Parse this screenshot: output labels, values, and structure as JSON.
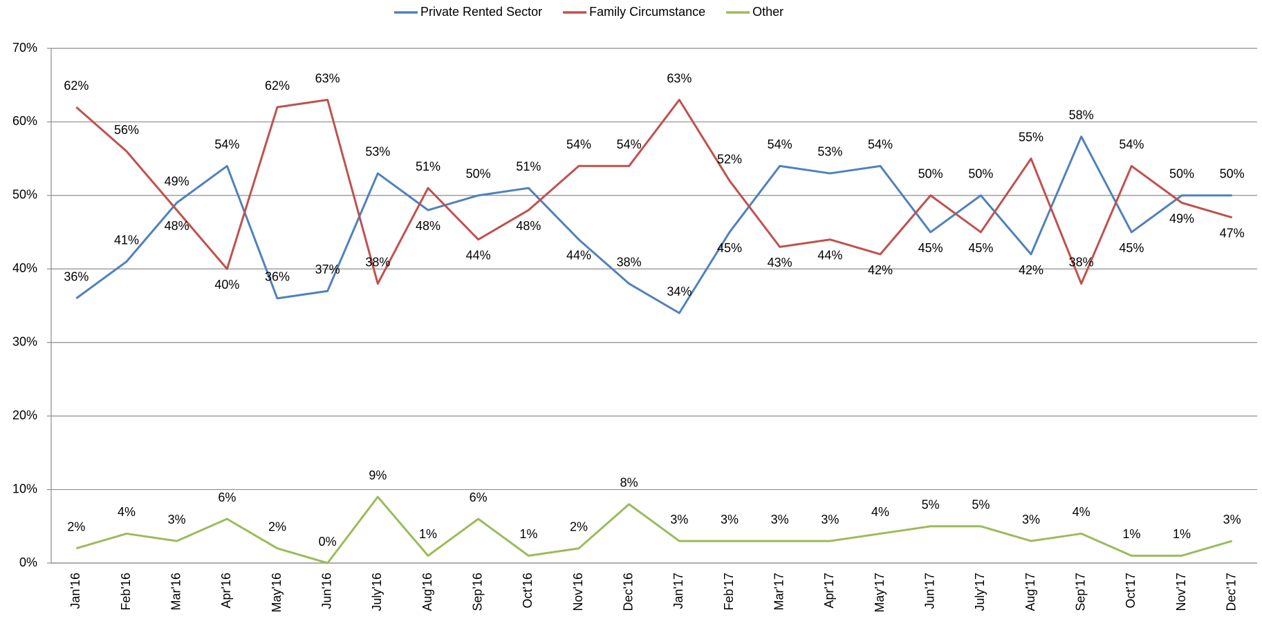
{
  "chart_data": {
    "type": "line",
    "categories": [
      "Jan'16",
      "Feb'16",
      "Mar'16",
      "Apr'16",
      "May'16",
      "Jun'16",
      "July'16",
      "Aug'16",
      "Sep'16",
      "Oct'16",
      "Nov'16",
      "Dec'16",
      "Jan'17",
      "Feb'17",
      "Mar'17",
      "Apr'17",
      "May'17",
      "Jun'17",
      "July'17",
      "Aug'17",
      "Sep'17",
      "Oct'17",
      "Nov'17",
      "Dec'17"
    ],
    "series": [
      {
        "name": "Private Rented Sector",
        "color": "#4f81bd",
        "values": [
          36,
          41,
          49,
          54,
          36,
          37,
          53,
          48,
          50,
          51,
          44,
          38,
          34,
          45,
          54,
          53,
          54,
          45,
          50,
          42,
          58,
          45,
          50,
          50
        ],
        "value_labels": [
          "36%",
          "41%",
          "49%",
          "54%",
          "36%",
          "37%",
          "53%",
          "48%",
          "50%",
          "51%",
          "44%",
          "38%",
          "34%",
          "45%",
          "54%",
          "53%",
          "54%",
          "45%",
          "50%",
          "42%",
          "58%",
          "45%",
          "50%",
          "50%"
        ]
      },
      {
        "name": "Family Circumstance",
        "color": "#c0504d",
        "values": [
          62,
          56,
          48,
          40,
          62,
          63,
          38,
          51,
          44,
          48,
          54,
          54,
          63,
          52,
          43,
          44,
          42,
          50,
          45,
          55,
          38,
          54,
          49,
          47
        ],
        "value_labels": [
          "62%",
          "56%",
          "48%",
          "40%",
          "62%",
          "63%",
          "38%",
          "51%",
          "44%",
          "48%",
          "54%",
          "54%",
          "63%",
          "52%",
          "43%",
          "44%",
          "42%",
          "50%",
          "45%",
          "55%",
          "38%",
          "54%",
          "49%",
          "47%"
        ]
      },
      {
        "name": "Other",
        "color": "#9bbb59",
        "values": [
          2,
          4,
          3,
          6,
          2,
          0,
          9,
          1,
          6,
          1,
          2,
          8,
          3,
          3,
          3,
          3,
          4,
          5,
          5,
          3,
          4,
          1,
          1,
          3
        ],
        "value_labels": [
          "2%",
          "4%",
          "3%",
          "6%",
          "2%",
          "0%",
          "9%",
          "1%",
          "6%",
          "1%",
          "2%",
          "8%",
          "3%",
          "3%",
          "3%",
          "3%",
          "4%",
          "5%",
          "5%",
          "3%",
          "4%",
          "1%",
          "1%",
          "3%"
        ]
      }
    ],
    "ylim": [
      0,
      70
    ],
    "yticks": [
      {
        "value": 0,
        "label": "0%"
      },
      {
        "value": 10,
        "label": "10%"
      },
      {
        "value": 20,
        "label": "20%"
      },
      {
        "value": 30,
        "label": "30%"
      },
      {
        "value": 40,
        "label": "40%"
      },
      {
        "value": 50,
        "label": "50%"
      },
      {
        "value": 60,
        "label": "60%"
      },
      {
        "value": 70,
        "label": "70%"
      }
    ],
    "grid": true,
    "legend": "top"
  }
}
